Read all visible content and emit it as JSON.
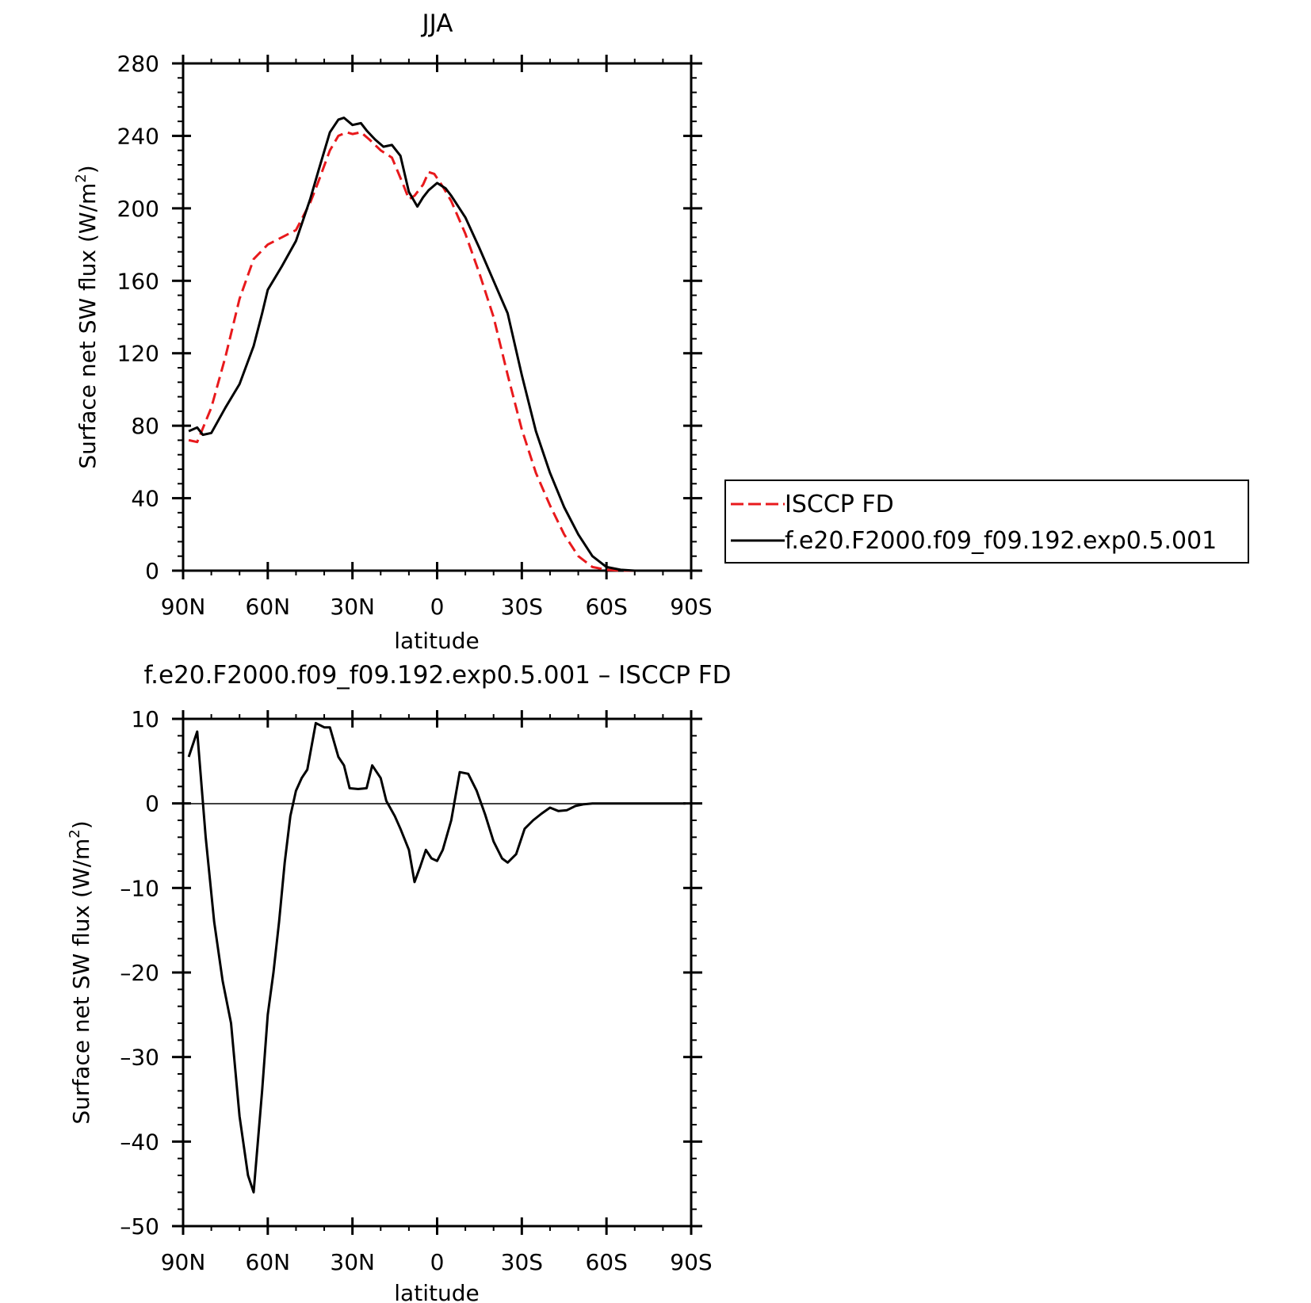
{
  "chart_data": [
    {
      "type": "line",
      "title": "JJA",
      "xlabel": "latitude",
      "ylabel": "Surface net SW flux (W/m",
      "ylabel_sup": "2",
      "ylabel_close": ")",
      "xlim": [
        90,
        -90
      ],
      "ylim": [
        0,
        280
      ],
      "xticks": [
        90,
        60,
        30,
        0,
        -30,
        -60,
        -90
      ],
      "xtick_labels": [
        "90N",
        "60N",
        "30N",
        "0",
        "30S",
        "60S",
        "90S"
      ],
      "yticks": [
        0,
        40,
        80,
        120,
        160,
        200,
        240,
        280
      ],
      "ytick_labels": [
        "0",
        "40",
        "80",
        "120",
        "160",
        "200",
        "240",
        "280"
      ],
      "legend_placement": "right-middle",
      "series": [
        {
          "name": "ISCCP FD",
          "color": "#e8191c",
          "style": "dashed",
          "x": [
            88,
            85,
            80,
            75,
            70,
            65,
            60,
            55,
            50,
            45,
            42,
            38,
            35,
            32,
            30,
            27,
            24,
            20,
            16,
            12,
            10,
            8,
            5,
            3,
            1,
            -2,
            -5,
            -10,
            -15,
            -20,
            -25,
            -30,
            -35,
            -40,
            -45,
            -50,
            -55,
            -60,
            -65,
            -70,
            -75,
            -80,
            -85,
            -88
          ],
          "y": [
            72,
            71,
            90,
            118,
            150,
            172,
            180,
            184,
            188,
            203,
            215,
            232,
            240,
            242,
            241,
            242,
            238,
            232,
            228,
            213,
            205,
            207,
            213,
            220,
            219,
            212,
            204,
            186,
            164,
            140,
            108,
            78,
            54,
            36,
            20,
            8,
            2,
            0.5,
            0,
            0,
            0,
            0,
            0,
            0
          ]
        },
        {
          "name": "f.e20.F2000.f09_f09.192.exp0.5.001",
          "color": "#000000",
          "style": "solid",
          "x": [
            88,
            85,
            83,
            80,
            75,
            70,
            65,
            62,
            60,
            55,
            50,
            45,
            42,
            38,
            35,
            33,
            30,
            27,
            25,
            22,
            19,
            16,
            13,
            10,
            7,
            5,
            3,
            0,
            -3,
            -5,
            -10,
            -15,
            -20,
            -25,
            -30,
            -35,
            -40,
            -45,
            -50,
            -55,
            -60,
            -65,
            -70,
            -75,
            -80,
            -85,
            -88
          ],
          "y": [
            77,
            79,
            75,
            76,
            90,
            103,
            124,
            142,
            155,
            168,
            182,
            205,
            221,
            242,
            249,
            250,
            246,
            247,
            243,
            238,
            234,
            235,
            229,
            209,
            201,
            206,
            210,
            214,
            211,
            207,
            195,
            178,
            160,
            142,
            108,
            77,
            54,
            35,
            20,
            8,
            2,
            0.5,
            0,
            0,
            0,
            0,
            0
          ]
        }
      ]
    },
    {
      "type": "line",
      "title": "f.e20.F2000.f09_f09.192.exp0.5.001 – ISCCP FD",
      "xlabel": "latitude",
      "ylabel": "Surface net SW flux (W/m",
      "ylabel_sup": "2",
      "ylabel_close": ")",
      "xlim": [
        90,
        -90
      ],
      "ylim": [
        -50,
        10
      ],
      "xticks": [
        90,
        60,
        30,
        0,
        -30,
        -60,
        -90
      ],
      "xtick_labels": [
        "90N",
        "60N",
        "30N",
        "0",
        "30S",
        "60S",
        "90S"
      ],
      "yticks": [
        10,
        0,
        -10,
        -20,
        -30,
        -40,
        -50
      ],
      "ytick_labels": [
        "10",
        "0",
        "–10",
        "–20",
        "–30",
        "–40",
        "–50"
      ],
      "series": [
        {
          "color": "#000000",
          "style": "solid",
          "x": [
            88,
            85,
            82,
            79,
            76,
            73,
            70,
            67,
            65,
            62,
            60,
            58,
            56,
            54,
            52,
            50,
            48,
            46,
            43,
            40,
            38,
            35,
            33,
            31,
            28,
            25,
            23,
            20,
            18,
            15,
            13,
            10,
            8,
            6,
            4,
            2,
            0,
            -2,
            -5,
            -8,
            -11,
            -14,
            -17,
            -20,
            -23,
            -25,
            -28,
            -31,
            -34,
            -37,
            -40,
            -43,
            -46,
            -49,
            -52,
            -55,
            -58,
            -61,
            -64,
            -67,
            -70,
            -73,
            -76,
            -79,
            -82,
            -85,
            -88
          ],
          "y": [
            5.5,
            8.5,
            -4,
            -14,
            -21,
            -26,
            -37,
            -44,
            -46,
            -34,
            -25,
            -20,
            -14,
            -7,
            -1.5,
            1.5,
            3,
            4,
            9.5,
            9,
            9,
            5.5,
            4.5,
            1.8,
            1.7,
            1.8,
            4.5,
            3,
            0.3,
            -1.5,
            -3,
            -5.5,
            -9.3,
            -7.5,
            -5.5,
            -6.5,
            -6.8,
            -5.5,
            -2,
            3.7,
            3.5,
            1.5,
            -1.3,
            -4.5,
            -6.5,
            -7,
            -6,
            -3,
            -2,
            -1.2,
            -0.5,
            -0.9,
            -0.8,
            -0.3,
            -0.1,
            0,
            0,
            0,
            0,
            0,
            0,
            0,
            0,
            0,
            0,
            0,
            0
          ]
        }
      ]
    }
  ]
}
